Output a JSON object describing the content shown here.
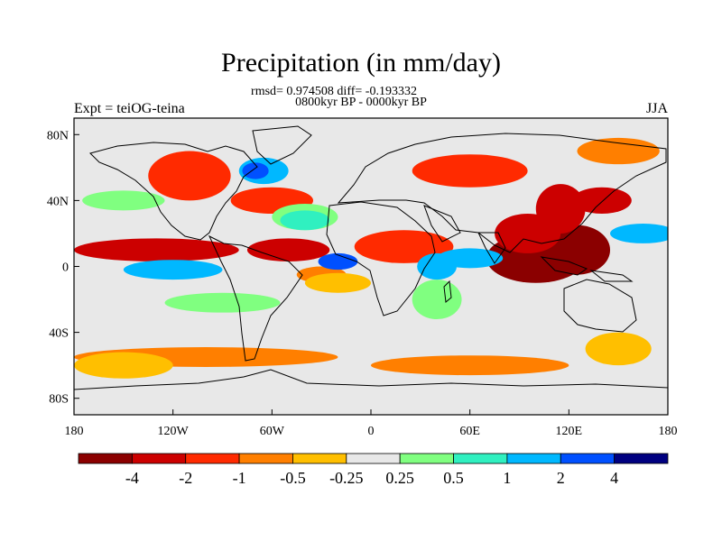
{
  "title": "Precipitation (in mm/day)",
  "stats": "rmsd= 0.974508 diff= -0.193332",
  "period": "0800kyr BP - 0000kyr BP",
  "experiment": "Expt = teiOG-teina",
  "season": "JJA",
  "chart_data": {
    "type": "heatmap",
    "variable": "Precipitation difference",
    "units": "mm/day",
    "rmsd": 0.974508,
    "diff": -0.193332,
    "lon_range": [
      -180,
      180
    ],
    "lat_range": [
      -90,
      90
    ],
    "x_ticks": [
      "180",
      "120W",
      "60W",
      "0",
      "60E",
      "120E",
      "180"
    ],
    "y_ticks": [
      "80N",
      "40N",
      "0",
      "40S",
      "80S"
    ],
    "colorbar": {
      "levels": [
        -4,
        -2,
        -1,
        -0.5,
        -0.25,
        0.25,
        0.5,
        1,
        2,
        4
      ],
      "labels": [
        "-4",
        "-2",
        "-1",
        "-0.5",
        "-0.25",
        "0.25",
        "0.5",
        "1",
        "2",
        "4"
      ],
      "colors": [
        "#8b0000",
        "#cc0000",
        "#ff2a00",
        "#ff7f00",
        "#ffbf00",
        "#e8e8e8",
        "#80ff80",
        "#30f0c0",
        "#00b8ff",
        "#0050ff",
        "#000080"
      ]
    },
    "features": [
      {
        "lon": 100,
        "lat": 5,
        "rx": 30,
        "ry": 15,
        "level": 0
      },
      {
        "lon": 125,
        "lat": 10,
        "rx": 20,
        "ry": 15,
        "level": 0
      },
      {
        "lon": 95,
        "lat": 20,
        "rx": 20,
        "ry": 12,
        "level": 1
      },
      {
        "lon": 115,
        "lat": 35,
        "rx": 15,
        "ry": 15,
        "level": 1
      },
      {
        "lon": 140,
        "lat": 40,
        "rx": 18,
        "ry": 8,
        "level": 1
      },
      {
        "lon": -130,
        "lat": 10,
        "rx": 50,
        "ry": 7,
        "level": 1
      },
      {
        "lon": -50,
        "lat": 10,
        "rx": 25,
        "ry": 7,
        "level": 1
      },
      {
        "lon": 20,
        "lat": 12,
        "rx": 30,
        "ry": 10,
        "level": 2
      },
      {
        "lon": -110,
        "lat": 55,
        "rx": 25,
        "ry": 15,
        "level": 2
      },
      {
        "lon": -60,
        "lat": 40,
        "rx": 25,
        "ry": 8,
        "level": 2
      },
      {
        "lon": 60,
        "lat": 58,
        "rx": 35,
        "ry": 10,
        "level": 2
      },
      {
        "lon": 150,
        "lat": 70,
        "rx": 25,
        "ry": 8,
        "level": 3
      },
      {
        "lon": -30,
        "lat": -5,
        "rx": 15,
        "ry": 5,
        "level": 3
      },
      {
        "lon": -100,
        "lat": -55,
        "rx": 80,
        "ry": 6,
        "level": 3
      },
      {
        "lon": 60,
        "lat": -60,
        "rx": 60,
        "ry": 6,
        "level": 3
      },
      {
        "lon": -20,
        "lat": -10,
        "rx": 20,
        "ry": 6,
        "level": 4
      },
      {
        "lon": -150,
        "lat": -60,
        "rx": 30,
        "ry": 8,
        "level": 4
      },
      {
        "lon": 150,
        "lat": -50,
        "rx": 20,
        "ry": 10,
        "level": 4
      },
      {
        "lon": -40,
        "lat": 30,
        "rx": 20,
        "ry": 8,
        "level": 6
      },
      {
        "lon": -150,
        "lat": 40,
        "rx": 25,
        "ry": 6,
        "level": 6
      },
      {
        "lon": 40,
        "lat": -20,
        "rx": 15,
        "ry": 12,
        "level": 6
      },
      {
        "lon": -90,
        "lat": -22,
        "rx": 35,
        "ry": 6,
        "level": 6
      },
      {
        "lon": -40,
        "lat": 28,
        "rx": 15,
        "ry": 6,
        "level": 7
      },
      {
        "lon": -120,
        "lat": -2,
        "rx": 30,
        "ry": 6,
        "level": 8
      },
      {
        "lon": 40,
        "lat": 0,
        "rx": 12,
        "ry": 8,
        "level": 8
      },
      {
        "lon": 60,
        "lat": 5,
        "rx": 20,
        "ry": 6,
        "level": 8
      },
      {
        "lon": -65,
        "lat": 58,
        "rx": 15,
        "ry": 8,
        "level": 8
      },
      {
        "lon": 165,
        "lat": 20,
        "rx": 20,
        "ry": 6,
        "level": 8
      },
      {
        "lon": -20,
        "lat": 3,
        "rx": 12,
        "ry": 5,
        "level": 9
      },
      {
        "lon": -70,
        "lat": 58,
        "rx": 8,
        "ry": 5,
        "level": 9
      }
    ]
  }
}
